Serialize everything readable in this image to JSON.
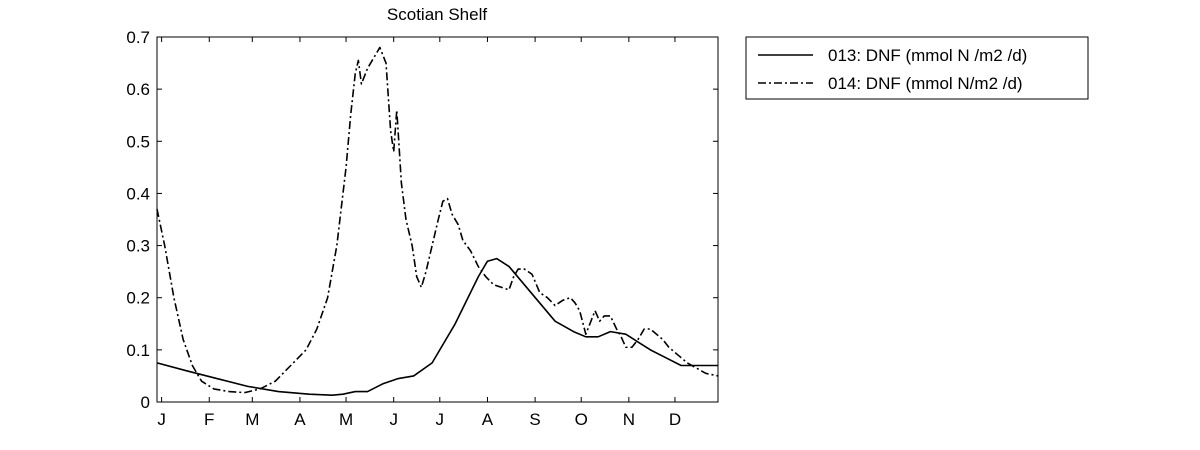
{
  "chart_data": {
    "type": "line",
    "title": "Scotian Shelf",
    "xlabel": "",
    "ylabel": "",
    "xlim": [
      1,
      366
    ],
    "ylim": [
      0,
      0.7
    ],
    "grid": false,
    "legend_position": "outside-top-right",
    "x_ticks": [
      {
        "label": "J",
        "day": 4
      },
      {
        "label": "F",
        "day": 35
      },
      {
        "label": "M",
        "day": 63
      },
      {
        "label": "A",
        "day": 94
      },
      {
        "label": "M",
        "day": 124
      },
      {
        "label": "J",
        "day": 155
      },
      {
        "label": "J",
        "day": 185
      },
      {
        "label": "A",
        "day": 216
      },
      {
        "label": "S",
        "day": 247
      },
      {
        "label": "O",
        "day": 277
      },
      {
        "label": "N",
        "day": 308
      },
      {
        "label": "D",
        "day": 338
      }
    ],
    "y_ticks": [
      {
        "label": "0",
        "value": 0
      },
      {
        "label": "0.1",
        "value": 0.1
      },
      {
        "label": "0.2",
        "value": 0.2
      },
      {
        "label": "0.3",
        "value": 0.3
      },
      {
        "label": "0.4",
        "value": 0.4
      },
      {
        "label": "0.5",
        "value": 0.5
      },
      {
        "label": "0.6",
        "value": 0.6
      },
      {
        "label": "0.7",
        "value": 0.7
      }
    ],
    "series": [
      {
        "name": "013: DNF (mmol N /m2 /d)",
        "line_style": "solid",
        "color": "#000000",
        "x": [
          1,
          20,
          40,
          60,
          80,
          100,
          115,
          122,
          130,
          138,
          148,
          158,
          168,
          180,
          195,
          210,
          216,
          222,
          230,
          240,
          250,
          260,
          272,
          280,
          288,
          296,
          306,
          314,
          322,
          332,
          342,
          352,
          366
        ],
        "y": [
          0.075,
          0.06,
          0.045,
          0.03,
          0.02,
          0.015,
          0.013,
          0.015,
          0.02,
          0.02,
          0.035,
          0.045,
          0.05,
          0.075,
          0.15,
          0.24,
          0.27,
          0.275,
          0.26,
          0.225,
          0.19,
          0.155,
          0.135,
          0.125,
          0.125,
          0.135,
          0.13,
          0.115,
          0.1,
          0.085,
          0.07,
          0.07,
          0.07
        ]
      },
      {
        "name": "014: DNF (mmol N/m2 /d)",
        "line_style": "dashdot",
        "color": "#000000",
        "x": [
          1,
          6,
          12,
          18,
          24,
          30,
          38,
          48,
          58,
          68,
          78,
          88,
          98,
          105,
          112,
          118,
          124,
          127,
          130,
          132,
          134,
          138,
          142,
          146,
          150,
          153,
          155,
          157,
          160,
          163,
          167,
          170,
          173,
          176,
          180,
          184,
          187,
          190,
          193,
          197,
          200,
          205,
          210,
          215,
          220,
          225,
          230,
          233,
          236,
          240,
          245,
          250,
          255,
          260,
          265,
          270,
          273,
          276,
          280,
          284,
          286,
          289,
          292,
          296,
          300,
          303,
          306,
          310,
          314,
          318,
          322,
          326,
          330,
          334,
          340,
          346,
          352,
          358,
          366
        ],
        "y": [
          0.37,
          0.3,
          0.2,
          0.12,
          0.07,
          0.04,
          0.025,
          0.02,
          0.018,
          0.025,
          0.04,
          0.07,
          0.1,
          0.14,
          0.2,
          0.3,
          0.45,
          0.55,
          0.63,
          0.655,
          0.61,
          0.64,
          0.66,
          0.68,
          0.65,
          0.52,
          0.48,
          0.56,
          0.42,
          0.35,
          0.3,
          0.24,
          0.22,
          0.25,
          0.3,
          0.35,
          0.385,
          0.39,
          0.36,
          0.34,
          0.31,
          0.29,
          0.26,
          0.24,
          0.225,
          0.22,
          0.215,
          0.24,
          0.255,
          0.255,
          0.245,
          0.21,
          0.2,
          0.185,
          0.195,
          0.2,
          0.19,
          0.175,
          0.13,
          0.16,
          0.175,
          0.155,
          0.165,
          0.165,
          0.14,
          0.125,
          0.105,
          0.105,
          0.12,
          0.14,
          0.14,
          0.13,
          0.12,
          0.105,
          0.09,
          0.075,
          0.065,
          0.055,
          0.05
        ]
      }
    ]
  }
}
